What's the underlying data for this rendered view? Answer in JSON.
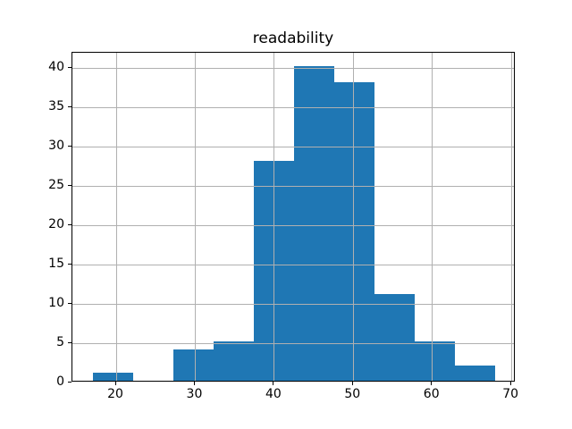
{
  "figure": {
    "background_color": "#ffffff"
  },
  "chart_data": {
    "type": "bar",
    "subtype": "histogram",
    "title": "readability",
    "xlabel": "",
    "ylabel": "",
    "bin_edges": [
      17.0,
      22.1,
      27.2,
      32.3,
      37.4,
      42.5,
      47.6,
      52.7,
      57.8,
      62.9,
      68.0
    ],
    "counts": [
      1,
      0,
      4,
      5,
      28,
      40,
      38,
      11,
      5,
      2
    ],
    "xlim": [
      14.45,
      70.55
    ],
    "ylim": [
      0,
      42
    ],
    "xticks": [
      20,
      30,
      40,
      50,
      60,
      70
    ],
    "yticks": [
      0,
      5,
      10,
      15,
      20,
      25,
      30,
      35,
      40
    ],
    "grid": true,
    "legend": "none",
    "bar_color": "#1f77b4",
    "grid_color": "#b0b0b0",
    "spine_color": "#000000",
    "text_color": "#000000"
  }
}
